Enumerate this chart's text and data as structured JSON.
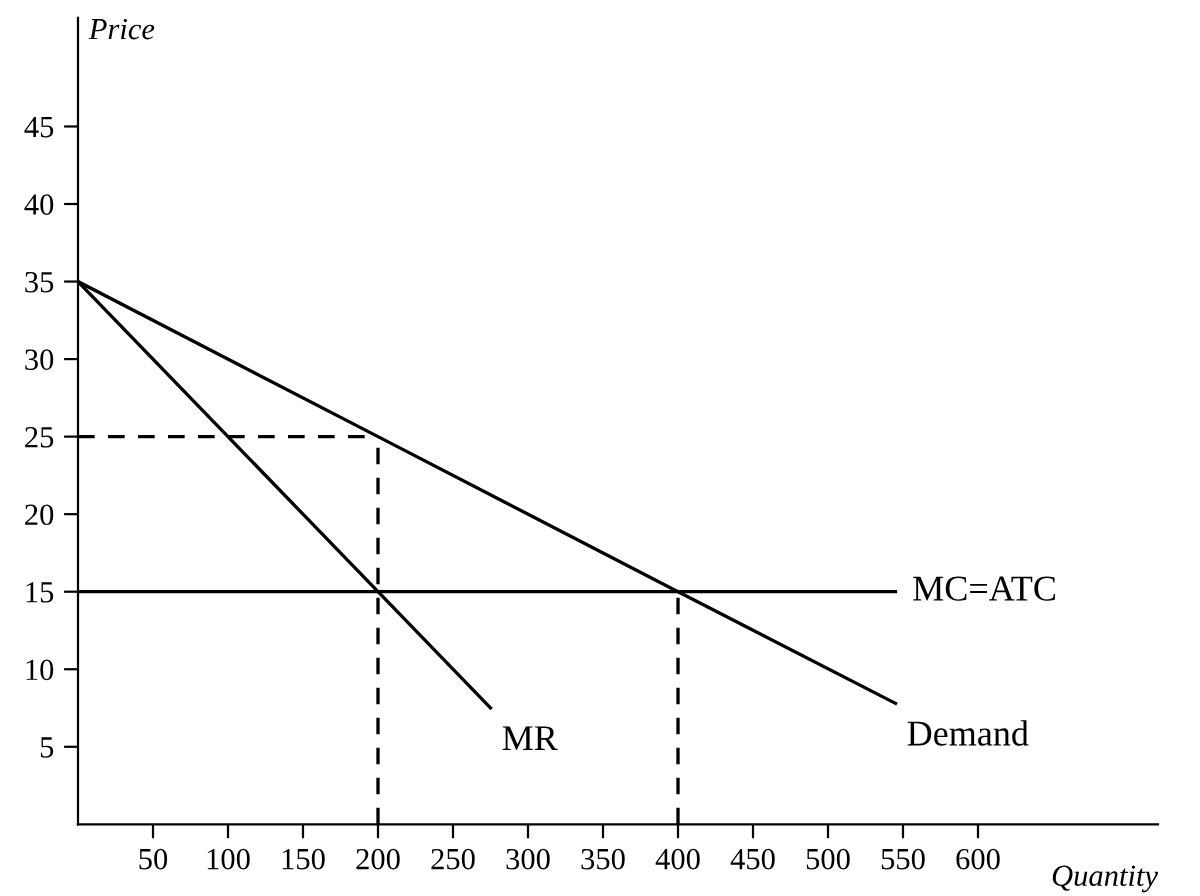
{
  "chart_data": {
    "type": "line",
    "xlabel": "Quantity",
    "ylabel": "Price",
    "xlim": [
      0,
      720
    ],
    "ylim": [
      0,
      52
    ],
    "xticks": [
      50,
      100,
      150,
      200,
      250,
      300,
      350,
      400,
      450,
      500,
      550,
      600
    ],
    "yticks": [
      5,
      10,
      15,
      20,
      25,
      30,
      35,
      40,
      45
    ],
    "grid": false,
    "legend": false,
    "marker": "none",
    "series": [
      {
        "name": "Demand",
        "color": "#000000",
        "x": [
          0,
          200,
          400,
          545
        ],
        "values": [
          35,
          25,
          15,
          7.8
        ],
        "line_style": "solid"
      },
      {
        "name": "MR",
        "color": "#000000",
        "x": [
          0,
          200,
          275
        ],
        "values": [
          35,
          15,
          7.5
        ],
        "line_style": "solid"
      },
      {
        "name": "MC=ATC",
        "color": "#000000",
        "x": [
          0,
          545
        ],
        "values": [
          15,
          15
        ],
        "line_style": "solid"
      },
      {
        "color": "#000000",
        "x": [
          0,
          200
        ],
        "values": [
          25,
          25
        ],
        "line_style": "dashed"
      },
      {
        "color": "#000000",
        "x": [
          200,
          200
        ],
        "values": [
          0,
          25
        ],
        "line_style": "dashed"
      },
      {
        "color": "#000000",
        "x": [
          400,
          400
        ],
        "values": [
          0,
          15
        ],
        "line_style": "dashed"
      }
    ]
  }
}
